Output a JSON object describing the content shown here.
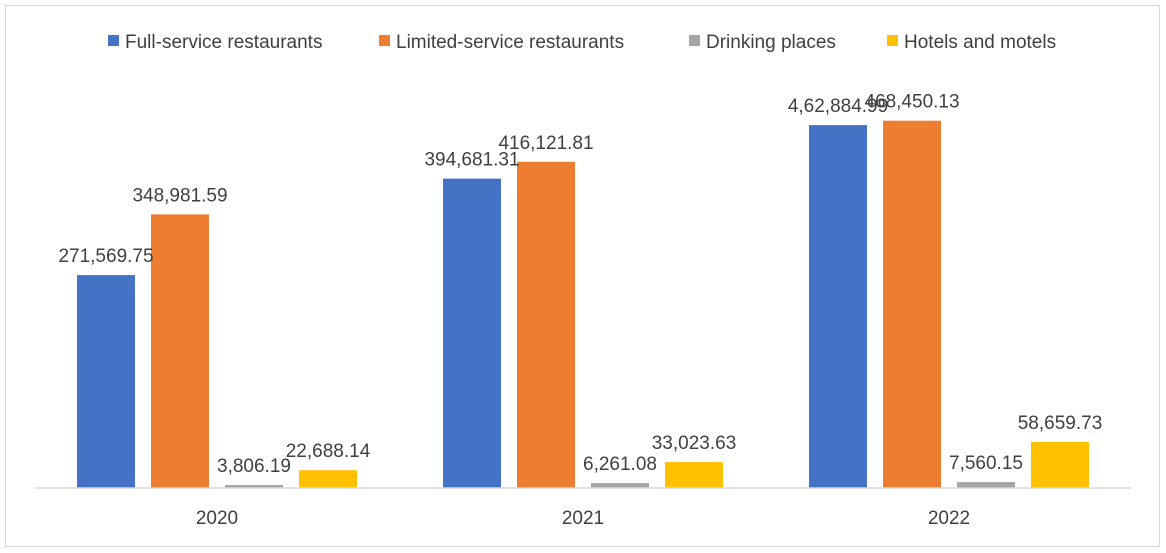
{
  "chart_data": {
    "type": "bar",
    "title": "",
    "xlabel": "",
    "ylabel": "",
    "categories": [
      "2020",
      "2021",
      "2022"
    ],
    "ylim": [
      0,
      500000
    ],
    "grid": false,
    "legend_position": "top",
    "series": [
      {
        "name": "Full-service restaurants",
        "color": "#4472C4",
        "values": [
          271569.75,
          394681.31,
          462884.99
        ],
        "labels": [
          "271,569.75",
          "394,681.31",
          "4,62,884.99"
        ]
      },
      {
        "name": "Limited-service restaurants",
        "color": "#ED7D31",
        "values": [
          348981.59,
          416121.81,
          468450.13
        ],
        "labels": [
          "348,981.59",
          "416,121.81",
          "468,450.13"
        ]
      },
      {
        "name": "Drinking places",
        "color": "#A5A5A5",
        "values": [
          3806.19,
          6261.08,
          7560.15
        ],
        "labels": [
          "3,806.19",
          "6,261.08",
          "7,560.15"
        ]
      },
      {
        "name": "Hotels and motels",
        "color": "#FFC000",
        "values": [
          22688.14,
          33023.63,
          58659.73
        ],
        "labels": [
          "22,688.14",
          "33,023.63",
          "58,659.73"
        ]
      }
    ]
  }
}
